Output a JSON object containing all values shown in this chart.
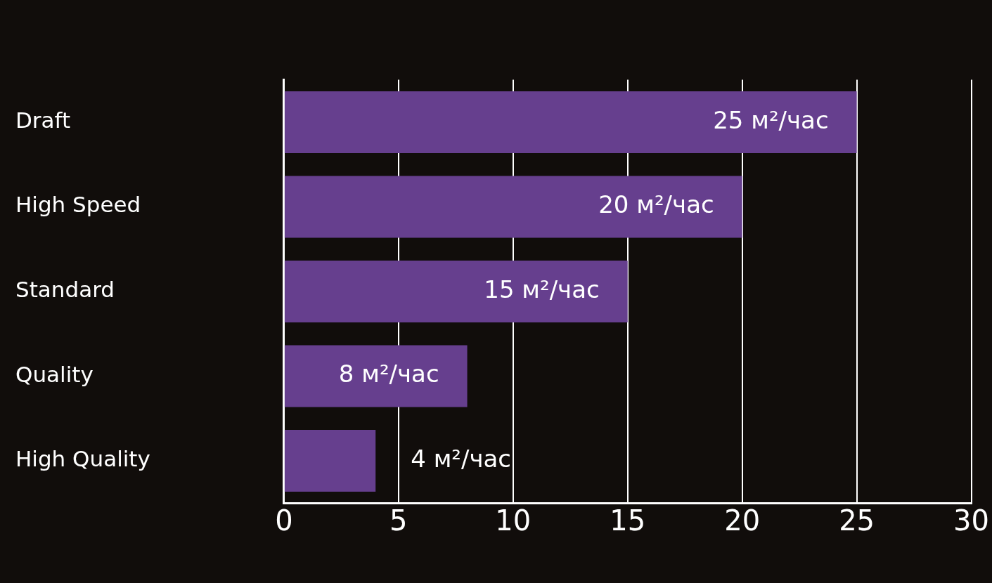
{
  "chart_data": {
    "type": "bar",
    "orientation": "horizontal",
    "categories": [
      "Draft",
      "High Speed",
      "Standard",
      "Quality",
      "High Quality"
    ],
    "values": [
      25,
      20,
      15,
      8,
      4
    ],
    "value_labels": [
      "25 м²/час",
      "20 м²/час",
      "15 м²/час",
      "8 м²/час",
      "4 м²/час"
    ],
    "color": "#663f8e",
    "xlim": [
      0,
      30
    ],
    "xticks": [
      0,
      5,
      10,
      15,
      20,
      25,
      30
    ],
    "grid": "x",
    "legend": false
  }
}
